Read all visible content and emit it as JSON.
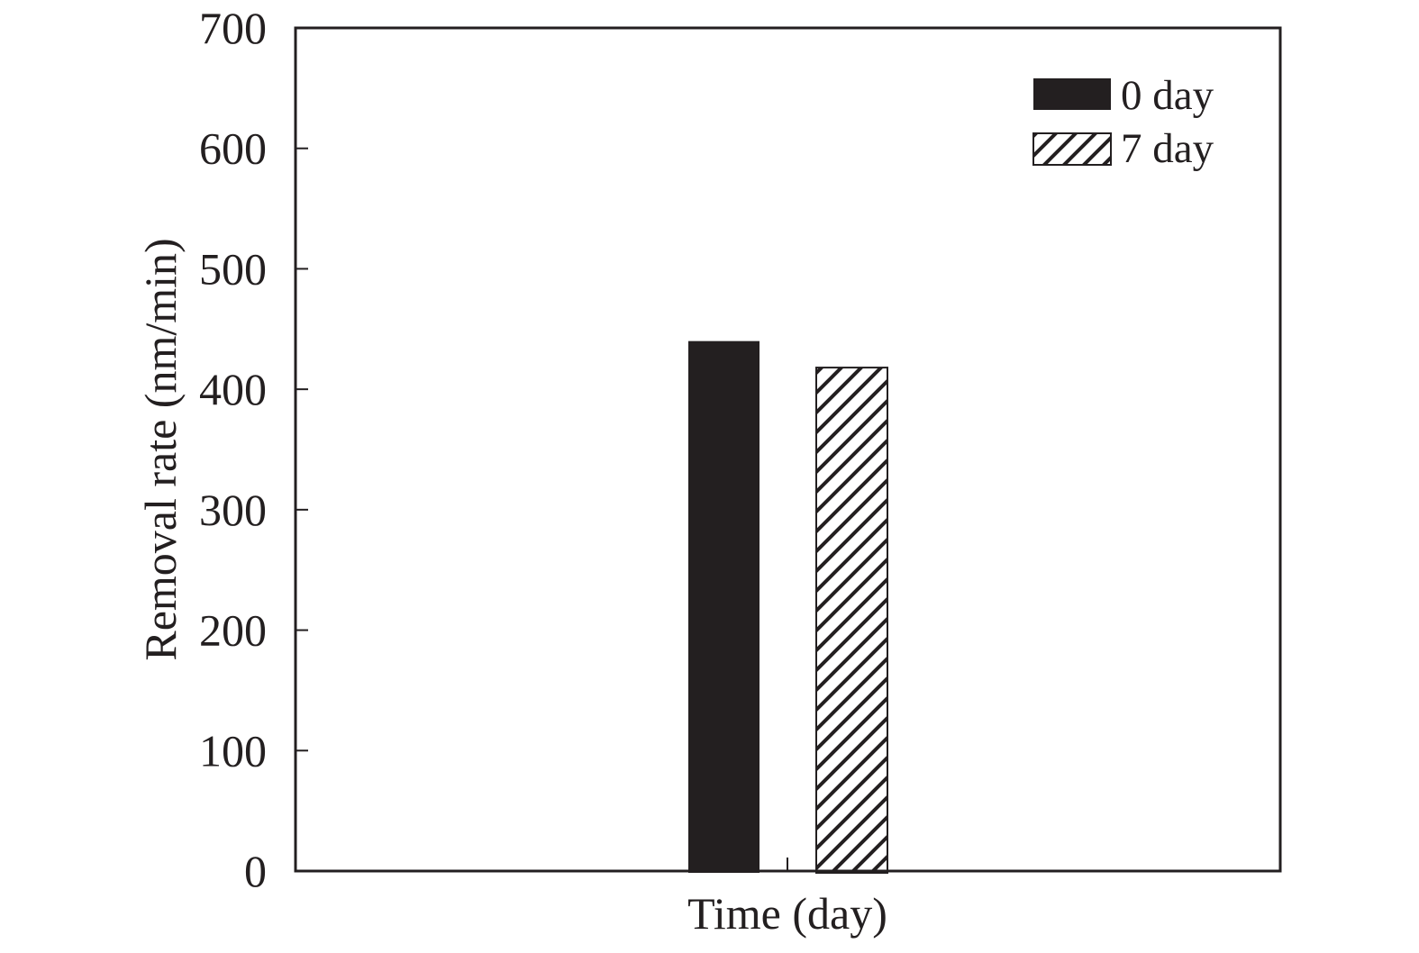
{
  "chart_data": {
    "type": "bar",
    "title": "",
    "xlabel": "Time (day)",
    "ylabel": "Removal rate (nm/min)",
    "ylim": [
      0,
      700
    ],
    "yticks": [
      0,
      100,
      200,
      300,
      400,
      500,
      600,
      700
    ],
    "categories": [
      ""
    ],
    "series": [
      {
        "name": "0 day",
        "values": [
          440
        ],
        "fill": "solid",
        "color": "#231f20"
      },
      {
        "name": "7 day",
        "values": [
          418
        ],
        "fill": "hatch",
        "color": "#231f20"
      }
    ],
    "legend": {
      "position": "top-right"
    },
    "grid": false
  }
}
